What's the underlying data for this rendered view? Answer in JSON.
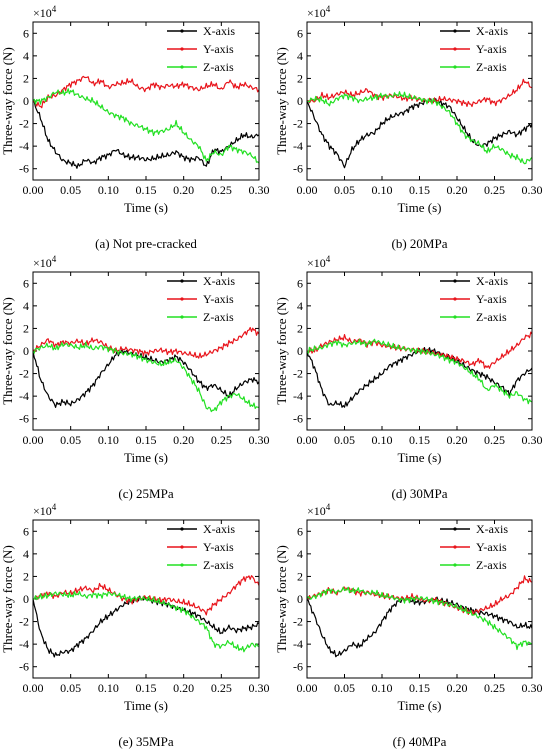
{
  "figure": {
    "colors": {
      "x": "#000000",
      "y": "#e8141b",
      "z": "#22e022"
    }
  },
  "chart_data": [
    {
      "type": "line",
      "caption": "(a) Not pre-cracked",
      "xlabel": "Time (s)",
      "ylabel": "Three-way force (N)",
      "y_multiplier": "×10",
      "y_multiplier_exp": "4",
      "xlim": [
        0,
        0.3
      ],
      "ylim": [
        -7,
        7
      ],
      "xticks": [
        0,
        0.05,
        0.1,
        0.15,
        0.2,
        0.25,
        0.3
      ],
      "xtick_labels": [
        "0.00",
        "0.05",
        "0.10",
        "0.15",
        "0.20",
        "0.25",
        "0.30"
      ],
      "yticks": [
        -6,
        -4,
        -2,
        0,
        2,
        4,
        6
      ],
      "ytick_labels": [
        "-6",
        "-4",
        "-2",
        "0",
        "2",
        "4",
        "6"
      ],
      "legend": {
        "position": "top-right"
      },
      "x": [
        0,
        0.01,
        0.02,
        0.03,
        0.04,
        0.05,
        0.06,
        0.07,
        0.08,
        0.09,
        0.1,
        0.11,
        0.12,
        0.13,
        0.14,
        0.15,
        0.16,
        0.17,
        0.18,
        0.19,
        0.2,
        0.21,
        0.22,
        0.23,
        0.24,
        0.25,
        0.26,
        0.27,
        0.28,
        0.29,
        0.3
      ],
      "series": [
        {
          "name": "X-axis",
          "key": "x",
          "values": [
            0,
            -1.5,
            -3.5,
            -4.5,
            -5.3,
            -5.5,
            -5.8,
            -5.2,
            -5.5,
            -5.0,
            -4.8,
            -4.3,
            -4.8,
            -5.0,
            -5.0,
            -5.2,
            -5.1,
            -4.9,
            -4.8,
            -4.5,
            -5.0,
            -5.2,
            -5.0,
            -5.8,
            -4.3,
            -4.5,
            -4.0,
            -3.5,
            -3.0,
            -3.2,
            -3.0
          ]
        },
        {
          "name": "Y-axis",
          "key": "y",
          "values": [
            0,
            -0.5,
            0.3,
            0.5,
            1.0,
            1.5,
            1.8,
            2.2,
            1.5,
            1.8,
            1.2,
            1.5,
            1.6,
            1.8,
            1.2,
            1.0,
            1.5,
            1.2,
            1.4,
            1.3,
            1.5,
            1.2,
            1.0,
            1.3,
            1.5,
            1.0,
            1.8,
            1.2,
            1.5,
            1.2,
            1.0
          ]
        },
        {
          "name": "Z-axis",
          "key": "z",
          "values": [
            0,
            0,
            0.3,
            0.8,
            0.7,
            0.9,
            0.5,
            0.2,
            0,
            -0.5,
            -1.0,
            -1.3,
            -1.5,
            -2.0,
            -2.2,
            -2.5,
            -2.8,
            -2.7,
            -2.5,
            -2.0,
            -2.8,
            -3.5,
            -4.0,
            -5.3,
            -4.5,
            -4.8,
            -4.0,
            -4.3,
            -4.5,
            -4.8,
            -5.5
          ]
        }
      ]
    },
    {
      "type": "line",
      "caption": "(b) 20MPa",
      "xlabel": "Time (s)",
      "ylabel": "Three-way force (N)",
      "y_multiplier": "×10",
      "y_multiplier_exp": "4",
      "xlim": [
        0,
        0.3
      ],
      "ylim": [
        -7,
        7
      ],
      "xticks": [
        0,
        0.05,
        0.1,
        0.15,
        0.2,
        0.25,
        0.3
      ],
      "xtick_labels": [
        "0.00",
        "0.05",
        "0.10",
        "0.15",
        "0.20",
        "0.25",
        "0.30"
      ],
      "yticks": [
        -6,
        -4,
        -2,
        0,
        2,
        4,
        6
      ],
      "ytick_labels": [
        "-6",
        "-4",
        "-2",
        "0",
        "2",
        "4",
        "6"
      ],
      "legend": {
        "position": "top-right"
      },
      "x": [
        0,
        0.01,
        0.02,
        0.03,
        0.04,
        0.05,
        0.06,
        0.07,
        0.08,
        0.09,
        0.1,
        0.11,
        0.12,
        0.13,
        0.14,
        0.15,
        0.16,
        0.17,
        0.18,
        0.19,
        0.2,
        0.21,
        0.22,
        0.23,
        0.24,
        0.25,
        0.26,
        0.27,
        0.28,
        0.29,
        0.3
      ],
      "series": [
        {
          "name": "X-axis",
          "key": "x",
          "values": [
            0,
            -1.5,
            -3.0,
            -4.0,
            -4.7,
            -5.8,
            -4.3,
            -3.5,
            -3.0,
            -2.8,
            -2.0,
            -1.5,
            -1.2,
            -1.0,
            -0.5,
            -0.3,
            0,
            0,
            -0.2,
            -0.5,
            -1.5,
            -2.5,
            -3.5,
            -4.0,
            -3.8,
            -3.3,
            -3.0,
            -2.7,
            -3.0,
            -2.5,
            -2.0
          ]
        },
        {
          "name": "Y-axis",
          "key": "y",
          "values": [
            0,
            0,
            0.5,
            0.3,
            0.6,
            0.8,
            0.5,
            0.7,
            1.0,
            0.5,
            0.3,
            0.5,
            0.4,
            0.2,
            0.3,
            0.1,
            0,
            0,
            0.2,
            0.1,
            0,
            -0.2,
            -0.3,
            0,
            0.2,
            -0.2,
            0.1,
            0.5,
            1.0,
            1.8,
            1.2
          ]
        },
        {
          "name": "Z-axis",
          "key": "z",
          "values": [
            0,
            0.2,
            0.1,
            -0.3,
            0.2,
            0.5,
            0.3,
            0,
            0.2,
            0.3,
            0.5,
            0.4,
            0.6,
            0.5,
            0.3,
            0.2,
            0,
            0,
            -0.5,
            -1.0,
            -2.0,
            -3.0,
            -3.5,
            -3.8,
            -4.5,
            -4.0,
            -4.3,
            -4.8,
            -5.0,
            -5.5,
            -5.0
          ]
        }
      ]
    },
    {
      "type": "line",
      "caption": "(c) 25MPa",
      "xlabel": "Time (s)",
      "ylabel": "Three-way force (N)",
      "y_multiplier": "×10",
      "y_multiplier_exp": "4",
      "xlim": [
        0,
        0.3
      ],
      "ylim": [
        -7,
        7
      ],
      "xticks": [
        0,
        0.05,
        0.1,
        0.15,
        0.2,
        0.25,
        0.3
      ],
      "xtick_labels": [
        "0.00",
        "0.05",
        "0.10",
        "0.15",
        "0.20",
        "0.25",
        "0.30"
      ],
      "yticks": [
        -6,
        -4,
        -2,
        0,
        2,
        4,
        6
      ],
      "ytick_labels": [
        "-6",
        "-4",
        "-2",
        "0",
        "2",
        "4",
        "6"
      ],
      "legend": {
        "position": "top-right"
      },
      "x": [
        0,
        0.01,
        0.02,
        0.03,
        0.04,
        0.05,
        0.06,
        0.07,
        0.08,
        0.09,
        0.1,
        0.11,
        0.12,
        0.13,
        0.14,
        0.15,
        0.16,
        0.17,
        0.18,
        0.19,
        0.2,
        0.21,
        0.22,
        0.23,
        0.24,
        0.25,
        0.26,
        0.27,
        0.28,
        0.29,
        0.3
      ],
      "series": [
        {
          "name": "X-axis",
          "key": "x",
          "values": [
            0,
            -2.5,
            -4.0,
            -4.8,
            -4.5,
            -4.7,
            -4.3,
            -3.7,
            -3.0,
            -2.0,
            -1.2,
            -0.3,
            0,
            -0.2,
            -0.4,
            -0.6,
            -0.8,
            -1.0,
            -0.8,
            -0.5,
            -1.0,
            -1.8,
            -2.7,
            -3.3,
            -3.0,
            -3.5,
            -4.0,
            -3.3,
            -2.8,
            -2.5,
            -2.7
          ]
        },
        {
          "name": "Y-axis",
          "key": "y",
          "values": [
            0,
            0.5,
            1.0,
            0.5,
            0.8,
            0.7,
            0.9,
            0.6,
            1.0,
            0.8,
            0.3,
            0,
            0.2,
            0.1,
            0,
            -0.2,
            0,
            0.1,
            -0.1,
            0,
            -0.2,
            -0.3,
            -0.5,
            -0.3,
            0,
            0.3,
            0.7,
            1.0,
            1.5,
            2.0,
            1.5
          ]
        },
        {
          "name": "Z-axis",
          "key": "z",
          "values": [
            0,
            0.3,
            0.5,
            0.2,
            0.6,
            0.5,
            0.3,
            0.5,
            0.2,
            0.4,
            0.2,
            0,
            -0.2,
            -0.3,
            -0.5,
            -0.8,
            -1.0,
            -1.2,
            -1.0,
            -0.8,
            -1.5,
            -2.5,
            -3.5,
            -5.0,
            -5.3,
            -4.5,
            -4.0,
            -3.8,
            -4.3,
            -4.8,
            -5.0
          ]
        }
      ]
    },
    {
      "type": "line",
      "caption": "(d) 30MPa",
      "xlabel": "Time (s)",
      "ylabel": "Three-way force (N)",
      "y_multiplier": "×10",
      "y_multiplier_exp": "4",
      "xlim": [
        0,
        0.3
      ],
      "ylim": [
        -7,
        7
      ],
      "xticks": [
        0,
        0.05,
        0.1,
        0.15,
        0.2,
        0.25,
        0.3
      ],
      "xtick_labels": [
        "0.00",
        "0.05",
        "0.10",
        "0.15",
        "0.20",
        "0.25",
        "0.30"
      ],
      "yticks": [
        -6,
        -4,
        -2,
        0,
        2,
        4,
        6
      ],
      "ytick_labels": [
        "-6",
        "-4",
        "-2",
        "0",
        "2",
        "4",
        "6"
      ],
      "legend": {
        "position": "top-right"
      },
      "x": [
        0,
        0.01,
        0.02,
        0.03,
        0.04,
        0.05,
        0.06,
        0.07,
        0.08,
        0.09,
        0.1,
        0.11,
        0.12,
        0.13,
        0.14,
        0.15,
        0.16,
        0.17,
        0.18,
        0.19,
        0.2,
        0.21,
        0.22,
        0.23,
        0.24,
        0.25,
        0.26,
        0.27,
        0.28,
        0.29,
        0.3
      ],
      "series": [
        {
          "name": "X-axis",
          "key": "x",
          "values": [
            0,
            -1.5,
            -3.5,
            -4.8,
            -4.6,
            -4.9,
            -4.2,
            -3.5,
            -3.0,
            -2.5,
            -2.0,
            -1.3,
            -1.0,
            -0.6,
            -0.3,
            0,
            0.1,
            0,
            -0.3,
            -0.6,
            -0.9,
            -1.3,
            -1.7,
            -2.0,
            -2.3,
            -2.8,
            -3.2,
            -3.8,
            -2.6,
            -2.0,
            -1.5
          ]
        },
        {
          "name": "Y-axis",
          "key": "y",
          "values": [
            0,
            0,
            0.5,
            0.8,
            1.0,
            1.2,
            0.8,
            1.0,
            0.6,
            0.8,
            0.5,
            0.4,
            0.3,
            0.2,
            0.1,
            0,
            -0.1,
            -0.2,
            -0.3,
            -0.5,
            -0.7,
            -0.9,
            -1.2,
            -0.8,
            -1.5,
            -1.0,
            -0.5,
            0,
            0.5,
            1.2,
            1.5
          ]
        },
        {
          "name": "Z-axis",
          "key": "z",
          "values": [
            0,
            0.2,
            0.3,
            0.6,
            0.8,
            0.5,
            0.7,
            0.8,
            0.6,
            0.9,
            0.7,
            0.5,
            0.3,
            0.2,
            0.1,
            0,
            -0.1,
            -0.3,
            -0.5,
            -0.8,
            -1.0,
            -1.5,
            -2.0,
            -2.5,
            -3.5,
            -3.0,
            -3.5,
            -4.0,
            -3.7,
            -4.3,
            -4.5
          ]
        }
      ]
    },
    {
      "type": "line",
      "caption": "(e) 35MPa",
      "xlabel": "Time (s)",
      "ylabel": "Three-way force (N)",
      "y_multiplier": "×10",
      "y_multiplier_exp": "4",
      "xlim": [
        0,
        0.3
      ],
      "ylim": [
        -7,
        7
      ],
      "xticks": [
        0,
        0.05,
        0.1,
        0.15,
        0.2,
        0.25,
        0.3
      ],
      "xtick_labels": [
        "0.00",
        "0.05",
        "0.10",
        "0.15",
        "0.20",
        "0.25",
        "0.30"
      ],
      "yticks": [
        -6,
        -4,
        -2,
        0,
        2,
        4,
        6
      ],
      "ytick_labels": [
        "-6",
        "-4",
        "-2",
        "0",
        "2",
        "4",
        "6"
      ],
      "legend": {
        "position": "top-right"
      },
      "x": [
        0,
        0.01,
        0.02,
        0.03,
        0.04,
        0.05,
        0.06,
        0.07,
        0.08,
        0.09,
        0.1,
        0.11,
        0.12,
        0.13,
        0.14,
        0.15,
        0.16,
        0.17,
        0.18,
        0.19,
        0.2,
        0.21,
        0.22,
        0.23,
        0.24,
        0.25,
        0.26,
        0.27,
        0.28,
        0.29,
        0.3
      ],
      "series": [
        {
          "name": "X-axis",
          "key": "x",
          "values": [
            0,
            -3.0,
            -4.5,
            -5.0,
            -4.7,
            -4.6,
            -4.0,
            -3.5,
            -2.8,
            -2.0,
            -1.5,
            -1.0,
            -0.5,
            -0.2,
            0,
            0,
            -0.2,
            -0.3,
            -0.5,
            -0.8,
            -1.0,
            -1.2,
            -1.5,
            -2.0,
            -2.5,
            -3.0,
            -2.5,
            -2.8,
            -2.6,
            -2.5,
            -2.2
          ]
        },
        {
          "name": "Y-axis",
          "key": "y",
          "values": [
            0,
            0.3,
            0.5,
            0.2,
            0.6,
            0.5,
            0.8,
            1.0,
            0.7,
            1.2,
            0.8,
            0.4,
            0,
            -0.2,
            0,
            0.2,
            0,
            -0.1,
            0,
            -0.2,
            -0.3,
            -0.5,
            -0.8,
            -1.2,
            -0.5,
            0,
            0.5,
            1.2,
            1.8,
            2.0,
            1.2
          ]
        },
        {
          "name": "Z-axis",
          "key": "z",
          "values": [
            0,
            0.2,
            0.3,
            0.5,
            0.4,
            0.3,
            0.5,
            0.2,
            0.4,
            0.3,
            0.5,
            0.4,
            0.2,
            0,
            0.1,
            0,
            -0.1,
            -0.3,
            -0.5,
            -0.8,
            -1.0,
            -1.5,
            -2.0,
            -2.5,
            -4.0,
            -4.2,
            -3.8,
            -4.3,
            -4.5,
            -4.0,
            -4.2
          ]
        }
      ]
    },
    {
      "type": "line",
      "caption": "(f) 40MPa",
      "xlabel": "Time (s)",
      "ylabel": "Three-way force (N)",
      "y_multiplier": "×10",
      "y_multiplier_exp": "4",
      "xlim": [
        0,
        0.3
      ],
      "ylim": [
        -7,
        7
      ],
      "xticks": [
        0,
        0.05,
        0.1,
        0.15,
        0.2,
        0.25,
        0.3
      ],
      "xtick_labels": [
        "0.00",
        "0.05",
        "0.10",
        "0.15",
        "0.20",
        "0.25",
        "0.30"
      ],
      "yticks": [
        -6,
        -4,
        -2,
        0,
        2,
        4,
        6
      ],
      "ytick_labels": [
        "-6",
        "-4",
        "-2",
        "0",
        "2",
        "4",
        "6"
      ],
      "legend": {
        "position": "top-right"
      },
      "x": [
        0,
        0.01,
        0.02,
        0.03,
        0.04,
        0.05,
        0.06,
        0.07,
        0.08,
        0.09,
        0.1,
        0.11,
        0.12,
        0.13,
        0.14,
        0.15,
        0.16,
        0.17,
        0.18,
        0.19,
        0.2,
        0.21,
        0.22,
        0.23,
        0.24,
        0.25,
        0.26,
        0.27,
        0.28,
        0.29,
        0.3
      ],
      "series": [
        {
          "name": "X-axis",
          "key": "x",
          "values": [
            0,
            -1.5,
            -3.2,
            -4.5,
            -5.0,
            -4.6,
            -4.0,
            -4.2,
            -3.5,
            -3.0,
            -2.0,
            -1.0,
            -0.3,
            0,
            -0.2,
            -0.3,
            -0.2,
            0,
            -0.2,
            -0.3,
            -0.5,
            -0.8,
            -1.0,
            -1.2,
            -1.3,
            -1.5,
            -1.8,
            -2.0,
            -2.5,
            -2.3,
            -2.6
          ]
        },
        {
          "name": "Y-axis",
          "key": "y",
          "values": [
            0,
            0.3,
            0.5,
            0.8,
            0.5,
            1.0,
            0.8,
            0.5,
            0.6,
            0.4,
            0.3,
            0.2,
            0.1,
            0,
            0.2,
            0,
            -0.2,
            0,
            -0.3,
            -0.5,
            -0.8,
            -1.0,
            -1.2,
            -1.0,
            -0.8,
            -0.5,
            0,
            0.3,
            1.0,
            1.8,
            1.5
          ]
        },
        {
          "name": "Z-axis",
          "key": "z",
          "values": [
            0,
            0.2,
            0.5,
            0.8,
            0.6,
            0.9,
            0.7,
            0.8,
            0.5,
            0.6,
            0.3,
            0.2,
            0,
            -0.1,
            0,
            0.1,
            0,
            -0.2,
            -0.3,
            -0.5,
            -0.7,
            -1.0,
            -1.3,
            -1.6,
            -2.0,
            -2.5,
            -3.0,
            -3.5,
            -4.2,
            -3.8,
            -4.0
          ]
        }
      ]
    }
  ]
}
